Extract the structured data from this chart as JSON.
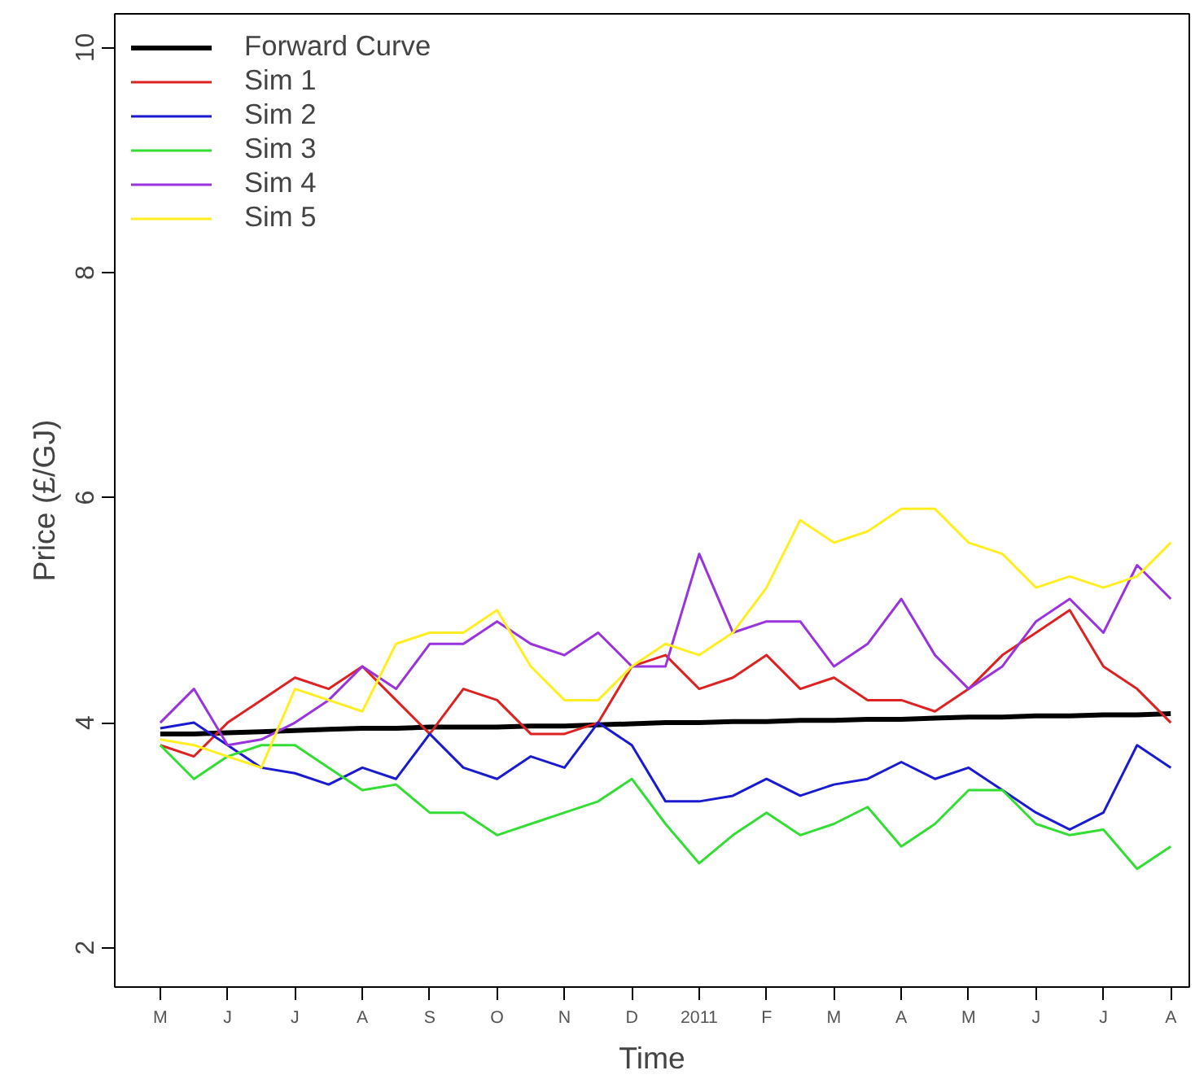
{
  "chart_data": {
    "type": "line",
    "xlabel": "Time",
    "ylabel": "Price (£/GJ)",
    "categories": [
      "M",
      null,
      "J",
      null,
      "J",
      null,
      "A",
      null,
      "S",
      null,
      "O",
      null,
      "N",
      null,
      "D",
      null,
      "2011",
      null,
      "F",
      null,
      "M",
      null,
      "A",
      null,
      "M",
      null,
      "J",
      null,
      "J",
      null,
      "A"
    ],
    "series": [
      {
        "name": "Forward Curve",
        "color": "#000000",
        "values": [
          3.9,
          3.9,
          3.91,
          3.92,
          3.93,
          3.94,
          3.95,
          3.95,
          3.96,
          3.96,
          3.96,
          3.97,
          3.97,
          3.98,
          3.99,
          4.0,
          4.0,
          4.01,
          4.01,
          4.02,
          4.02,
          4.03,
          4.03,
          4.04,
          4.05,
          4.05,
          4.06,
          4.06,
          4.07,
          4.07,
          4.08
        ]
      },
      {
        "name": "Sim 1",
        "color": "#dd2222",
        "values": [
          3.8,
          3.7,
          4.0,
          4.2,
          4.4,
          4.3,
          4.5,
          4.2,
          3.9,
          4.3,
          4.2,
          3.9,
          3.9,
          4.0,
          4.5,
          4.6,
          4.3,
          4.4,
          4.6,
          4.3,
          4.4,
          4.2,
          4.2,
          4.1,
          4.3,
          4.6,
          4.8,
          5.0,
          4.5,
          4.3,
          4.0
        ]
      },
      {
        "name": "Sim 2",
        "color": "#1a1ad0",
        "values": [
          3.95,
          4.0,
          3.8,
          3.6,
          3.55,
          3.45,
          3.6,
          3.5,
          3.9,
          3.6,
          3.5,
          3.7,
          3.6,
          4.0,
          3.8,
          3.3,
          3.3,
          3.35,
          3.5,
          3.35,
          3.45,
          3.5,
          3.65,
          3.5,
          3.6,
          3.4,
          3.2,
          3.05,
          3.2,
          3.8,
          3.6
        ]
      },
      {
        "name": "Sim 3",
        "color": "#33dd33",
        "values": [
          3.8,
          3.5,
          3.7,
          3.8,
          3.8,
          3.6,
          3.4,
          3.45,
          3.2,
          3.2,
          3.0,
          3.1,
          3.2,
          3.3,
          3.5,
          3.1,
          2.75,
          3.0,
          3.2,
          3.0,
          3.1,
          3.25,
          2.9,
          3.1,
          3.4,
          3.4,
          3.1,
          3.0,
          3.05,
          2.7,
          2.9
        ]
      },
      {
        "name": "Sim 4",
        "color": "#9933dd",
        "values": [
          4.0,
          4.3,
          3.8,
          3.85,
          4.0,
          4.2,
          4.5,
          4.3,
          4.7,
          4.7,
          4.9,
          4.7,
          4.6,
          4.8,
          4.5,
          4.5,
          5.5,
          4.8,
          4.9,
          4.9,
          4.5,
          4.7,
          5.1,
          4.6,
          4.3,
          4.5,
          4.9,
          5.1,
          4.8,
          5.4,
          5.1
        ]
      },
      {
        "name": "Sim 5",
        "color": "#ffee22",
        "values": [
          3.85,
          3.8,
          3.7,
          3.6,
          4.3,
          4.2,
          4.1,
          4.7,
          4.8,
          4.8,
          5.0,
          4.5,
          4.2,
          4.2,
          4.5,
          4.7,
          4.6,
          4.8,
          5.2,
          5.8,
          5.6,
          5.7,
          5.9,
          5.9,
          5.6,
          5.5,
          5.2,
          5.3,
          5.2,
          5.3,
          5.6
        ]
      }
    ],
    "ylim": [
      1.65,
      10.3
    ],
    "yticks": [
      2,
      4,
      6,
      8,
      10
    ],
    "grid": false,
    "legend": "top left",
    "line_style": "solid"
  }
}
